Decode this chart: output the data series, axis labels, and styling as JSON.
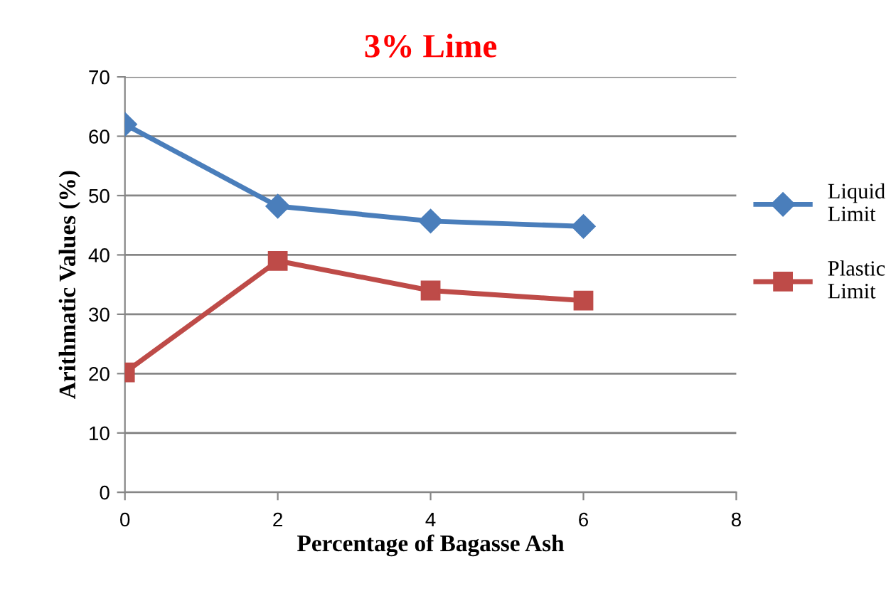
{
  "chart_data": {
    "type": "line",
    "title": "3% Lime",
    "xlabel": "Percentage of Bagasse Ash",
    "ylabel": "Arithmatic Values (%)",
    "x": [
      0,
      2,
      4,
      6
    ],
    "series": [
      {
        "name": "Liquid Limit",
        "color": "#4a7ebb",
        "marker": "diamond",
        "values": [
          62,
          48.2,
          45.7,
          44.8
        ]
      },
      {
        "name": "Plastic Limit",
        "color": "#be4b48",
        "marker": "square",
        "values": [
          20.2,
          39,
          34,
          32.3
        ]
      }
    ],
    "xlim": [
      0,
      8
    ],
    "xticks": [
      0,
      2,
      4,
      6,
      8
    ],
    "ylim": [
      0,
      70
    ],
    "yticks": [
      0,
      10,
      20,
      30,
      40,
      50,
      60,
      70
    ],
    "grid": "y",
    "legend": "right",
    "line_style": "solid"
  }
}
